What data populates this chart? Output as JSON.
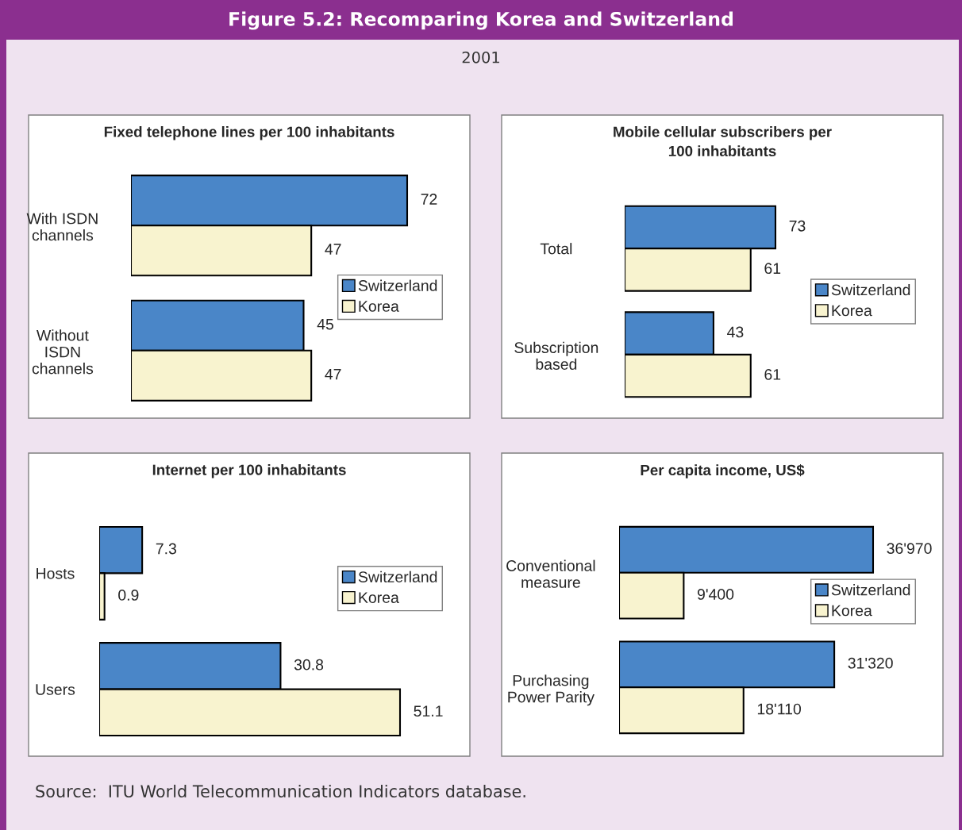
{
  "chart_data": [
    {
      "type": "other",
      "title": "Figure 5.2: Recomparing Korea and Switzerland",
      "subtitle": "2001"
    },
    {
      "type": "bar",
      "orientation": "horizontal",
      "title": "Fixed telephone lines per 100 inhabitants",
      "categories": [
        "With ISDN\nchannels",
        "Without\nISDN\nchannels"
      ],
      "tick_labels": "y",
      "legend": "right",
      "series": [
        {
          "name": "Switzerland",
          "color": "#4a86c8",
          "values": [
            72,
            45
          ],
          "value_labels": [
            "72",
            "45"
          ]
        },
        {
          "name": "Korea",
          "color": "#f8f3cf",
          "values": [
            47,
            47
          ],
          "value_labels": [
            "47",
            "47"
          ]
        }
      ]
    },
    {
      "type": "bar",
      "orientation": "horizontal",
      "title": "Mobile cellular subscribers per\n100 inhabitants",
      "categories": [
        "Total",
        "Subscription\nbased"
      ],
      "tick_labels": "y",
      "legend": "right",
      "series": [
        {
          "name": "Switzerland",
          "color": "#4a86c8",
          "values": [
            73,
            43
          ],
          "value_labels": [
            "73",
            "43"
          ]
        },
        {
          "name": "Korea",
          "color": "#f8f3cf",
          "values": [
            61,
            61
          ],
          "value_labels": [
            "61",
            "61"
          ]
        }
      ]
    },
    {
      "type": "bar",
      "orientation": "horizontal",
      "title": "Internet per 100 inhabitants",
      "categories": [
        "Hosts",
        "Users"
      ],
      "tick_labels": "y",
      "legend": "right",
      "series": [
        {
          "name": "Switzerland",
          "color": "#4a86c8",
          "values": [
            7.3,
            30.8
          ],
          "value_labels": [
            "7.3",
            "30.8"
          ]
        },
        {
          "name": "Korea",
          "color": "#f8f3cf",
          "values": [
            0.9,
            51.1
          ],
          "value_labels": [
            "0.9",
            "51.1"
          ]
        }
      ]
    },
    {
      "type": "bar",
      "orientation": "horizontal",
      "title": "Per capita income, US$",
      "categories": [
        "Conventional\nmeasure",
        "Purchasing\nPower Parity"
      ],
      "tick_labels": "y",
      "legend": "right",
      "series": [
        {
          "name": "Switzerland",
          "color": "#4a86c8",
          "values": [
            36970,
            31320
          ],
          "value_labels": [
            "36'970",
            "31'320"
          ]
        },
        {
          "name": "Korea",
          "color": "#f8f3cf",
          "values": [
            9400,
            18110
          ],
          "value_labels": [
            "9'400",
            "18'110"
          ]
        }
      ]
    },
    {
      "type": "other",
      "annotations": [
        "Source:  ITU World Telecommunication Indicators database."
      ]
    }
  ]
}
